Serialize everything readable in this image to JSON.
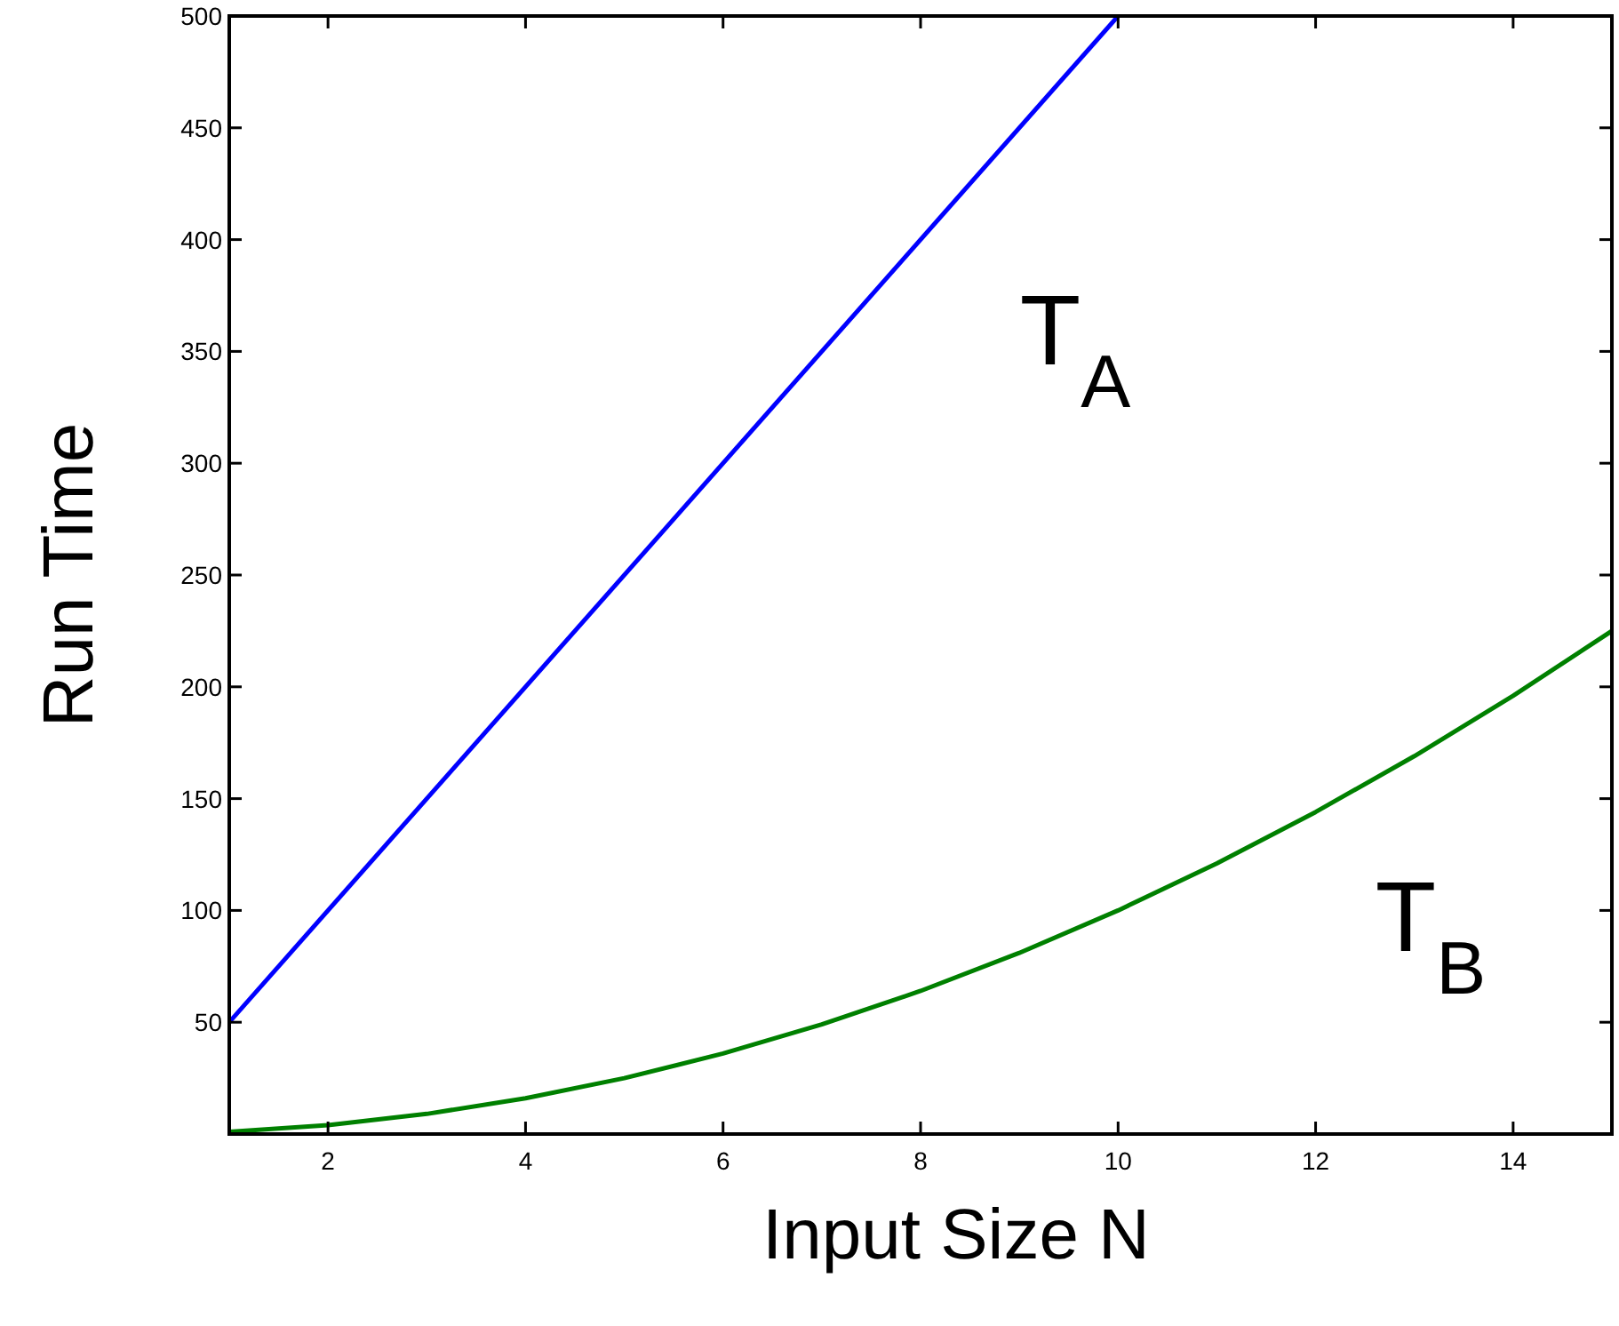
{
  "chart_data": {
    "type": "line",
    "xlabel": "Input Size N",
    "ylabel": "Run Time",
    "xlim": [
      1,
      15
    ],
    "ylim": [
      0,
      500
    ],
    "xticks": [
      2,
      4,
      6,
      8,
      10,
      12,
      14
    ],
    "yticks": [
      50,
      100,
      150,
      200,
      250,
      300,
      350,
      400,
      450,
      500
    ],
    "grid": false,
    "marker": "none",
    "line_style": "solid",
    "series": [
      {
        "color": "#0000ff",
        "x": [
          1,
          10
        ],
        "values": [
          50,
          500
        ]
      },
      {
        "color": "#008000",
        "x": [
          1,
          2,
          3,
          4,
          5,
          6,
          7,
          8,
          9,
          10,
          11,
          12,
          13,
          14,
          15
        ],
        "values": [
          1,
          4,
          9,
          16,
          25,
          36,
          49,
          64,
          81,
          100,
          121,
          144,
          169,
          196,
          225
        ]
      }
    ],
    "annotations": [
      "T$_{A}$",
      "T$_{B}$"
    ]
  }
}
